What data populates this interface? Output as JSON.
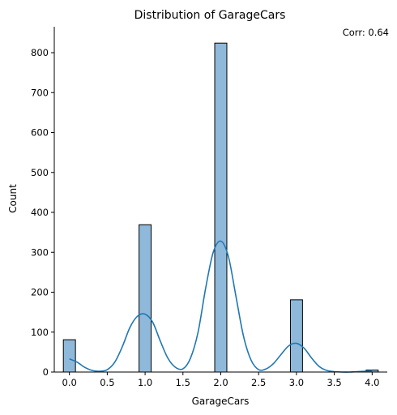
{
  "chart_data": {
    "type": "bar",
    "title": "Distribution of GarageCars",
    "annotation": "Corr: 0.64",
    "xlabel": "GarageCars",
    "ylabel": "Count",
    "xlim": [
      -0.2,
      4.2
    ],
    "ylim": [
      0,
      865
    ],
    "x_ticks": [
      "0.0",
      "0.5",
      "1.0",
      "1.5",
      "2.0",
      "2.5",
      "3.0",
      "3.5",
      "4.0"
    ],
    "y_ticks": [
      "0",
      "100",
      "200",
      "300",
      "400",
      "500",
      "600",
      "700",
      "800"
    ],
    "bars": [
      {
        "x": 0,
        "value": 81
      },
      {
        "x": 1,
        "value": 369
      },
      {
        "x": 2,
        "value": 824
      },
      {
        "x": 3,
        "value": 181
      },
      {
        "x": 4,
        "value": 5
      }
    ],
    "bin_width": 0.16,
    "kde": {
      "x": [
        0.0,
        0.1,
        0.2,
        0.3,
        0.4,
        0.5,
        0.6,
        0.7,
        0.8,
        0.9,
        1.0,
        1.1,
        1.2,
        1.3,
        1.4,
        1.5,
        1.6,
        1.7,
        1.8,
        1.9,
        2.0,
        2.1,
        2.2,
        2.3,
        2.4,
        2.5,
        2.6,
        2.7,
        2.8,
        2.9,
        3.0,
        3.1,
        3.2,
        3.3,
        3.4,
        3.5,
        3.6,
        3.7,
        3.8,
        3.9,
        4.0
      ],
      "y": [
        33,
        25,
        12,
        4,
        2,
        6,
        25,
        64,
        112,
        140,
        145,
        125,
        78,
        35,
        12,
        8,
        35,
        100,
        210,
        300,
        328,
        290,
        190,
        90,
        30,
        6,
        8,
        22,
        45,
        66,
        72,
        60,
        35,
        14,
        4,
        1,
        0,
        0,
        1,
        2,
        3
      ]
    },
    "colors": {
      "bar_fill": "#8fb9da",
      "bar_stroke": "#000000",
      "kde_line": "#1f77b4"
    },
    "grid": false,
    "legend": "none"
  }
}
